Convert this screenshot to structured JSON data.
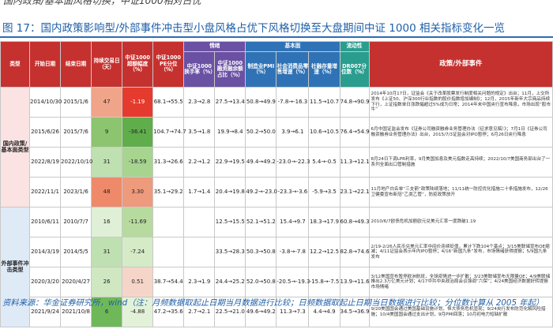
{
  "top_strip_text": "国内政策/基本面风格切换，中证1000相对占优",
  "caption": "图 17：国内政策影响型/外部事件冲击型小盘风格占优下风格切换至大盘期间中证 1000 相关指标变化一览",
  "headers": {
    "type": "类型",
    "start": "开始日期",
    "end": "结束日期",
    "duration": "持续交易日（天）",
    "excess": "中证1000超额幅度（%）",
    "pe": "中证1000 PE分位（%）",
    "group_sentiment": "情绪",
    "turnover": "中证1000换手率（%）",
    "margin": "中证1000 融资融余额占比（%）",
    "group_fundamental": "基本面",
    "pmi": "制造业PMI（%）",
    "retail": "社会消费品零售增速（%）",
    "social_fin": "社融存量增速（%）",
    "group_liquidity": "流动性",
    "dr007": "DR007分位数（%）",
    "events": "政策/外部事件"
  },
  "categories": [
    {
      "label": "国内政策/基本面类型",
      "rows": 4
    },
    {
      "label": "外部事件冲击类型",
      "rows": 4
    }
  ],
  "rows": [
    {
      "start": "2014/10/30",
      "end": "2015/1/6",
      "duration": "47",
      "excess": "-1.19",
      "pe": "68.1→55.5",
      "turnover": "2.3→2.8",
      "margin": "27.5→13.4",
      "pmi": "50.8→49.9",
      "retail": "-7.8→-16.3",
      "social_fin": "11.5→10.7",
      "dr007": "74.8→90.9",
      "event": "2014年10月17日，证监会《关于改革股票发行制度相关问题的规定》出台；11月，上交所发布《上证50、沪深300行业指数的股价指数增加编制》；12月，2015年新年大宗商品持续下行，上证指数单日涨跌幅超过5%成为日常；2014年末中国央行宣布降息，市场出现“股市牛”"
    },
    {
      "start": "2015/6/26",
      "end": "2015/7/6",
      "duration": "9",
      "excess": "-36.41",
      "pe": "104.7→74.7",
      "turnover": "3.5→1.8",
      "margin": "19.9→8.4",
      "pmi": "50.2→50.0",
      "retail": "3.9→6.1",
      "social_fin": "10.6→10.5",
      "dr007": "76.4→54.9",
      "event": "6月中国证监会发布《证券公司融资融券业务管理办法（征求意见稿）》；7月1日《证券公司融资融券业务管理办法》出台，2015/7/3证监会对IPO暂停；6月26日央行降息"
    },
    {
      "start": "2022/8/19",
      "end": "2022/10/10",
      "duration": "31",
      "excess": "-18.59",
      "pe": "31.3→26.6",
      "turnover": "2.2→1.2",
      "margin": "22.9→19.5",
      "pmi": "49.4→49.2",
      "retail": "-23.0→-22.3",
      "social_fin": "5.4→-0.5",
      "dr007": "11.3→12.1",
      "event": "8月24日下调LPR利率，9月美国加息及美元指数走高持续；2022/10/7美国商务部出台了一系列全面出口管制措施"
    },
    {
      "start": "2022/11/1",
      "end": "2023/1/6",
      "duration": "48",
      "excess": "3.30",
      "pe": "35.1→29.2",
      "turnover": "1.7→1.4",
      "margin": "20.4→19.8",
      "pmi": "49.2→-23.0",
      "retail": "-23.3→-3.6",
      "social_fin": "-5.9→3.5",
      "dr007": "23.1→22.1",
      "event": "11月地产白名单“三支箭”政策陆续落地；11/11统一防控优化措施二十条措施发布，12/26卫健委宣布新冠“乙类乙管”，防疫政策放开"
    },
    {
      "start": "2010/6/11",
      "end": "2010/7/7",
      "duration": "16",
      "excess": "-11.69",
      "pe": "",
      "turnover": "",
      "margin": "12.5→15.5",
      "pmi": "52.1→51.2",
      "retail": "15.4→9.7",
      "social_fin": "18.3→17.9",
      "dr007": "60.8→49.3",
      "event": "2010/6/7欧债危机加剧欧元兑美元汇率一度跌破1.19"
    },
    {
      "start": "2014/3/19",
      "end": "2014/5/5",
      "duration": "31",
      "excess": "-7.24",
      "pe": "",
      "turnover": "",
      "margin": "33.5→28.3",
      "pmi": "50.3→50.8",
      "retail": "-3.8→-7.8",
      "social_fin": "12.2→12.5",
      "dr007": "82.8→74.6",
      "event": "2/19-2/26人民币兑美元汇率中间价连续贬值，累计下跌104个基点；3/15美联储宣布QE缩减；4/11证监会表示年内IPO暂停；4/16“新国九条”发布，市场情绪获得提振；5/9国九条发布"
    },
    {
      "start": "2020/3/20",
      "end": "2020/4/27",
      "duration": "26",
      "excess": "0.51",
      "pe": "38.7→54.4",
      "turnover": "2.3→1.9",
      "margin": "24.4→25.2",
      "pmi": "52.0→50.8",
      "retail": "-20.5→-19.3",
      "social_fin": "-15.8→-7.5",
      "dr007": "13.9→11.6",
      "event": "3/12美国宣布暂停欧洲航班，全球疫情进一步扩散；3/23美联储宣布无限量QE；4/9美联储推出2.3万亿美元计划；4/17中共中央政治局会议强调“六保”；4/24美国经济数据好转提振市场情绪"
    },
    {
      "start": "2021/9/24",
      "end": "2021/10/8",
      "duration": "6",
      "excess": "-4.88",
      "pe": "47.2→35.6",
      "turnover": "2.7→2.1",
      "margin": "22.5→21.0",
      "pmi": "49.6→49.2",
      "retail": "11.3→7.3",
      "social_fin": "4.4→4.9",
      "dr007": "34.5→36.9",
      "event": "9/20美国国会通过美国基础设施计划，恒大债务危机显现；9/24央行发布防范化解风险措施；10/4美国国会通过支出计划，9月PMI回落；10月初电力短缺扩散"
    }
  ],
  "row_colors": {
    "duration": [
      "#f0a58a",
      "#8cc46f",
      "#bfe0b0",
      "#ee8a6a",
      "#dff0d6",
      "#bfe0b0",
      "#cfe8c2",
      "#6fb85a"
    ],
    "excess": [
      "#e53b2e",
      "#5fae4b",
      "#a7d48f",
      "#ee9a7c",
      "#b7db9f",
      "#d5ebc7",
      "#f6d5c9",
      "#e2f2d9"
    ]
  },
  "source": "资料来源：华金证券研究所，wind（注：月频数据取起止日期当月数据进行比较；日频数据取起止日期当日数据进行比较；分位数计算从 2005 年起）"
}
